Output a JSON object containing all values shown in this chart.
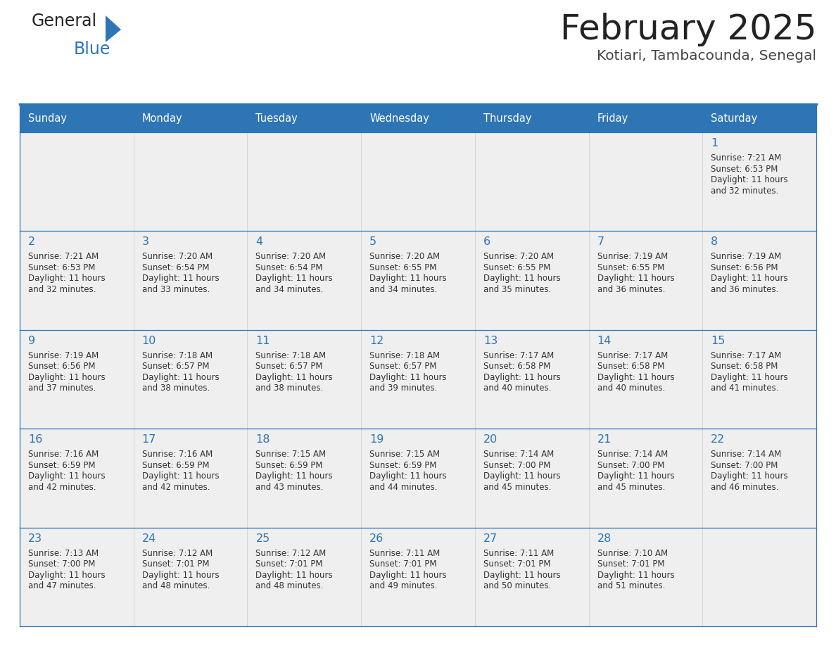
{
  "title": "February 2025",
  "subtitle": "Kotiari, Tambacounda, Senegal",
  "days_of_week": [
    "Sunday",
    "Monday",
    "Tuesday",
    "Wednesday",
    "Thursday",
    "Friday",
    "Saturday"
  ],
  "header_bg": "#2E75B6",
  "header_text": "#FFFFFF",
  "cell_bg": "#EFEFEF",
  "border_color": "#2E75B6",
  "title_color": "#222222",
  "subtitle_color": "#444444",
  "day_number_color": "#2E75B6",
  "cell_text_color": "#333333",
  "calendar_data": [
    [
      null,
      null,
      null,
      null,
      null,
      null,
      {
        "day": 1,
        "sunrise": "7:21 AM",
        "sunset": "6:53 PM",
        "daylight": "11 hours",
        "daylight2": "and 32 minutes."
      }
    ],
    [
      {
        "day": 2,
        "sunrise": "7:21 AM",
        "sunset": "6:53 PM",
        "daylight": "11 hours",
        "daylight2": "and 32 minutes."
      },
      {
        "day": 3,
        "sunrise": "7:20 AM",
        "sunset": "6:54 PM",
        "daylight": "11 hours",
        "daylight2": "and 33 minutes."
      },
      {
        "day": 4,
        "sunrise": "7:20 AM",
        "sunset": "6:54 PM",
        "daylight": "11 hours",
        "daylight2": "and 34 minutes."
      },
      {
        "day": 5,
        "sunrise": "7:20 AM",
        "sunset": "6:55 PM",
        "daylight": "11 hours",
        "daylight2": "and 34 minutes."
      },
      {
        "day": 6,
        "sunrise": "7:20 AM",
        "sunset": "6:55 PM",
        "daylight": "11 hours",
        "daylight2": "and 35 minutes."
      },
      {
        "day": 7,
        "sunrise": "7:19 AM",
        "sunset": "6:55 PM",
        "daylight": "11 hours",
        "daylight2": "and 36 minutes."
      },
      {
        "day": 8,
        "sunrise": "7:19 AM",
        "sunset": "6:56 PM",
        "daylight": "11 hours",
        "daylight2": "and 36 minutes."
      }
    ],
    [
      {
        "day": 9,
        "sunrise": "7:19 AM",
        "sunset": "6:56 PM",
        "daylight": "11 hours",
        "daylight2": "and 37 minutes."
      },
      {
        "day": 10,
        "sunrise": "7:18 AM",
        "sunset": "6:57 PM",
        "daylight": "11 hours",
        "daylight2": "and 38 minutes."
      },
      {
        "day": 11,
        "sunrise": "7:18 AM",
        "sunset": "6:57 PM",
        "daylight": "11 hours",
        "daylight2": "and 38 minutes."
      },
      {
        "day": 12,
        "sunrise": "7:18 AM",
        "sunset": "6:57 PM",
        "daylight": "11 hours",
        "daylight2": "and 39 minutes."
      },
      {
        "day": 13,
        "sunrise": "7:17 AM",
        "sunset": "6:58 PM",
        "daylight": "11 hours",
        "daylight2": "and 40 minutes."
      },
      {
        "day": 14,
        "sunrise": "7:17 AM",
        "sunset": "6:58 PM",
        "daylight": "11 hours",
        "daylight2": "and 40 minutes."
      },
      {
        "day": 15,
        "sunrise": "7:17 AM",
        "sunset": "6:58 PM",
        "daylight": "11 hours",
        "daylight2": "and 41 minutes."
      }
    ],
    [
      {
        "day": 16,
        "sunrise": "7:16 AM",
        "sunset": "6:59 PM",
        "daylight": "11 hours",
        "daylight2": "and 42 minutes."
      },
      {
        "day": 17,
        "sunrise": "7:16 AM",
        "sunset": "6:59 PM",
        "daylight": "11 hours",
        "daylight2": "and 42 minutes."
      },
      {
        "day": 18,
        "sunrise": "7:15 AM",
        "sunset": "6:59 PM",
        "daylight": "11 hours",
        "daylight2": "and 43 minutes."
      },
      {
        "day": 19,
        "sunrise": "7:15 AM",
        "sunset": "6:59 PM",
        "daylight": "11 hours",
        "daylight2": "and 44 minutes."
      },
      {
        "day": 20,
        "sunrise": "7:14 AM",
        "sunset": "7:00 PM",
        "daylight": "11 hours",
        "daylight2": "and 45 minutes."
      },
      {
        "day": 21,
        "sunrise": "7:14 AM",
        "sunset": "7:00 PM",
        "daylight": "11 hours",
        "daylight2": "and 45 minutes."
      },
      {
        "day": 22,
        "sunrise": "7:14 AM",
        "sunset": "7:00 PM",
        "daylight": "11 hours",
        "daylight2": "and 46 minutes."
      }
    ],
    [
      {
        "day": 23,
        "sunrise": "7:13 AM",
        "sunset": "7:00 PM",
        "daylight": "11 hours",
        "daylight2": "and 47 minutes."
      },
      {
        "day": 24,
        "sunrise": "7:12 AM",
        "sunset": "7:01 PM",
        "daylight": "11 hours",
        "daylight2": "and 48 minutes."
      },
      {
        "day": 25,
        "sunrise": "7:12 AM",
        "sunset": "7:01 PM",
        "daylight": "11 hours",
        "daylight2": "and 48 minutes."
      },
      {
        "day": 26,
        "sunrise": "7:11 AM",
        "sunset": "7:01 PM",
        "daylight": "11 hours",
        "daylight2": "and 49 minutes."
      },
      {
        "day": 27,
        "sunrise": "7:11 AM",
        "sunset": "7:01 PM",
        "daylight": "11 hours",
        "daylight2": "and 50 minutes."
      },
      {
        "day": 28,
        "sunrise": "7:10 AM",
        "sunset": "7:01 PM",
        "daylight": "11 hours",
        "daylight2": "and 51 minutes."
      },
      null
    ]
  ]
}
